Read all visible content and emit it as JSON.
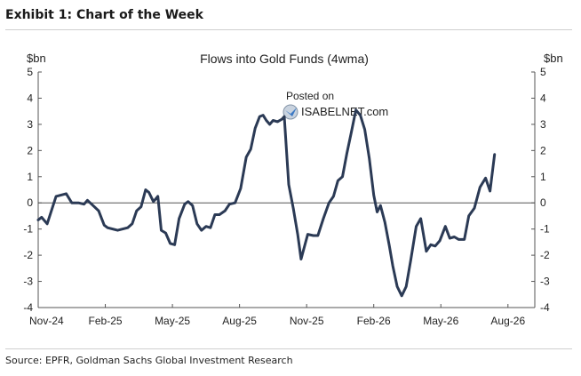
{
  "exhibit_title": "Exhibit 1: Chart of the Week",
  "source": "Source: EPFR, Goldman Sachs Global Investment Research",
  "watermark": {
    "line1": "Posted on",
    "line2": "ISABELNET.com"
  },
  "colors": {
    "line": "#2b3a55",
    "axis": "#555555"
  },
  "chart_data": {
    "type": "line",
    "title": "Flows into Gold Funds (4wma)",
    "ylabel_left": "$bn",
    "ylabel_right": "$bn",
    "ylim": [
      -4,
      5
    ],
    "yticks": [
      -4,
      -3,
      -2,
      -1,
      0,
      1,
      2,
      3,
      4,
      5
    ],
    "xlim": [
      0,
      22.2
    ],
    "xticks": [
      {
        "label": "Nov-24",
        "x": 0
      },
      {
        "label": "Feb-25",
        "x": 3
      },
      {
        "label": "May-25",
        "x": 6
      },
      {
        "label": "Aug-25",
        "x": 9
      },
      {
        "label": "Nov-25",
        "x": 12
      },
      {
        "label": "Feb-26",
        "x": 15
      },
      {
        "label": "May-26",
        "x": 18
      },
      {
        "label": "Aug-26",
        "x": 21
      }
    ],
    "x_unit": "months since Nov-24",
    "grid": false,
    "legend": "none",
    "series": [
      {
        "name": "Flows into Gold Funds (4wma)",
        "points": [
          [
            0.0,
            -0.65
          ],
          [
            0.15,
            -0.55
          ],
          [
            0.4,
            -0.8
          ],
          [
            0.8,
            0.25
          ],
          [
            1.25,
            0.35
          ],
          [
            1.5,
            0.0
          ],
          [
            1.8,
            0.0
          ],
          [
            2.05,
            -0.05
          ],
          [
            2.2,
            0.1
          ],
          [
            2.45,
            -0.1
          ],
          [
            2.7,
            -0.3
          ],
          [
            2.95,
            -0.85
          ],
          [
            3.1,
            -0.95
          ],
          [
            3.55,
            -1.05
          ],
          [
            4.0,
            -0.95
          ],
          [
            4.2,
            -0.8
          ],
          [
            4.4,
            -0.3
          ],
          [
            4.6,
            -0.15
          ],
          [
            4.8,
            0.5
          ],
          [
            4.95,
            0.4
          ],
          [
            5.15,
            0.05
          ],
          [
            5.35,
            0.25
          ],
          [
            5.5,
            -1.05
          ],
          [
            5.7,
            -1.15
          ],
          [
            5.9,
            -1.55
          ],
          [
            6.1,
            -1.6
          ],
          [
            6.3,
            -0.6
          ],
          [
            6.55,
            -0.05
          ],
          [
            6.7,
            0.05
          ],
          [
            6.9,
            -0.1
          ],
          [
            7.1,
            -0.8
          ],
          [
            7.3,
            -1.05
          ],
          [
            7.5,
            -0.9
          ],
          [
            7.7,
            -0.95
          ],
          [
            7.9,
            -0.45
          ],
          [
            8.1,
            -0.45
          ],
          [
            8.35,
            -0.3
          ],
          [
            8.55,
            -0.05
          ],
          [
            8.8,
            0.0
          ],
          [
            9.05,
            0.55
          ],
          [
            9.3,
            1.75
          ],
          [
            9.5,
            2.05
          ],
          [
            9.7,
            2.85
          ],
          [
            9.9,
            3.3
          ],
          [
            10.05,
            3.35
          ],
          [
            10.2,
            3.15
          ],
          [
            10.35,
            3.0
          ],
          [
            10.5,
            3.15
          ],
          [
            10.7,
            3.1
          ],
          [
            10.9,
            3.2
          ],
          [
            11.0,
            3.3
          ],
          [
            11.2,
            0.7
          ],
          [
            11.4,
            -0.2
          ],
          [
            11.6,
            -1.2
          ],
          [
            11.75,
            -2.15
          ],
          [
            12.05,
            -1.2
          ],
          [
            12.3,
            -1.25
          ],
          [
            12.5,
            -1.25
          ],
          [
            12.75,
            -0.6
          ],
          [
            13.0,
            0.0
          ],
          [
            13.2,
            0.25
          ],
          [
            13.4,
            0.85
          ],
          [
            13.6,
            1.0
          ],
          [
            13.8,
            1.9
          ],
          [
            14.0,
            2.7
          ],
          [
            14.2,
            3.55
          ],
          [
            14.4,
            3.35
          ],
          [
            14.6,
            2.8
          ],
          [
            14.8,
            1.7
          ],
          [
            15.0,
            0.3
          ],
          [
            15.15,
            -0.35
          ],
          [
            15.3,
            -0.1
          ],
          [
            15.5,
            -0.75
          ],
          [
            15.7,
            -1.65
          ],
          [
            15.85,
            -2.4
          ],
          [
            16.05,
            -3.2
          ],
          [
            16.25,
            -3.55
          ],
          [
            16.45,
            -3.2
          ],
          [
            16.65,
            -2.2
          ],
          [
            16.9,
            -0.9
          ],
          [
            17.1,
            -0.6
          ],
          [
            17.35,
            -1.85
          ],
          [
            17.55,
            -1.6
          ],
          [
            17.75,
            -1.65
          ],
          [
            17.95,
            -1.45
          ],
          [
            18.2,
            -0.9
          ],
          [
            18.4,
            -1.35
          ],
          [
            18.6,
            -1.3
          ],
          [
            18.8,
            -1.4
          ],
          [
            19.05,
            -1.4
          ],
          [
            19.25,
            -0.5
          ],
          [
            19.5,
            -0.2
          ],
          [
            19.75,
            0.6
          ],
          [
            20.0,
            0.95
          ],
          [
            20.2,
            0.45
          ],
          [
            20.4,
            1.85
          ]
        ]
      }
    ]
  }
}
